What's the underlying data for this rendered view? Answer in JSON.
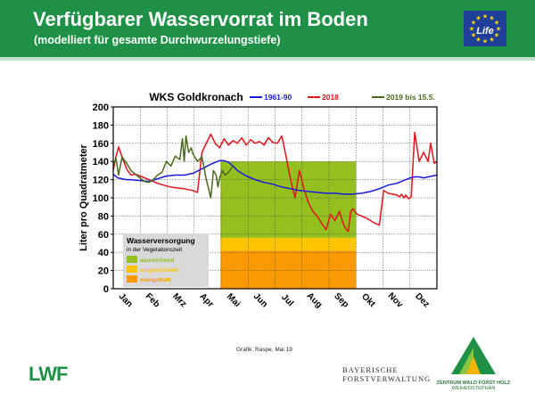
{
  "header": {
    "title": "Verfügbarer Wasservorrat im Boden",
    "subtitle": "(modelliert für gesamte Durchwurzelungstiefe)",
    "eu_logo_text": "Life"
  },
  "footer": {
    "credit": "Grafik: Raspe, Mai 19",
    "lwf_logo": "LWF",
    "bfv_line1": "BAYERISCHE",
    "bfv_line2": "FORSTVERWALTUNG",
    "zentrum_line1": "ZENTRUM WALD FORST HOLZ",
    "zentrum_line2": "WEIHENSTEPHAN"
  },
  "colors": {
    "header_green": "#1f9146",
    "series_1961_90": "#1a1adb",
    "series_2018": "#e0141c",
    "series_2019": "#4a6a1e",
    "ausreichend": "#93c01f",
    "eingeschraenkt": "#fcc500",
    "mangelhaft": "#fb9a00"
  },
  "chart_data": {
    "type": "line",
    "title": "WKS Goldkronach",
    "ylabel": "Liter pro Quadratmeter",
    "ylim": [
      0,
      200
    ],
    "yticks": [
      0,
      20,
      40,
      60,
      80,
      100,
      120,
      140,
      160,
      180,
      200
    ],
    "xlim": [
      0,
      365
    ],
    "months": [
      "Jan",
      "Feb",
      "Mrz",
      "Apr",
      "Mai",
      "Jun",
      "Jul",
      "Aug",
      "Sep",
      "Okt",
      "Nov",
      "Dez"
    ],
    "grid": true,
    "legend": "top",
    "vegetation_period": {
      "start_day": 121,
      "end_day": 274,
      "bands": [
        {
          "label": "mangelhaft",
          "from": 0,
          "to": 42
        },
        {
          "label": "eingeschränkt",
          "from": 42,
          "to": 56
        },
        {
          "label": "ausreichend",
          "from": 56,
          "to": 140
        }
      ]
    },
    "legend_box": {
      "title": "Wasserversorgung",
      "subtitle": "in der Vegetationszeit",
      "items": [
        "ausreichend",
        "eingeschränkt",
        "mangelhaft"
      ]
    },
    "series": [
      {
        "name": "1961-90",
        "x": [
          0,
          5,
          10,
          15,
          20,
          30,
          40,
          50,
          60,
          70,
          80,
          90,
          100,
          110,
          115,
          120,
          125,
          130,
          135,
          140,
          150,
          160,
          170,
          180,
          190,
          200,
          210,
          220,
          230,
          240,
          250,
          260,
          270,
          280,
          290,
          300,
          305,
          310,
          320,
          330,
          335,
          340,
          345,
          350,
          355,
          360,
          365
        ],
        "values": [
          126,
          122,
          121,
          120,
          120,
          119,
          118,
          121,
          124,
          125,
          125,
          127,
          132,
          137,
          139,
          141,
          141,
          139,
          135,
          130,
          124,
          120,
          117,
          115,
          112,
          110,
          108,
          107,
          106,
          105,
          105,
          104,
          104,
          105,
          107,
          110,
          112,
          114,
          116,
          120,
          122,
          123,
          123,
          122,
          123,
          124,
          125
        ]
      },
      {
        "name": "2018",
        "x": [
          0,
          3,
          6,
          10,
          15,
          20,
          25,
          30,
          40,
          50,
          60,
          70,
          80,
          90,
          95,
          100,
          105,
          110,
          115,
          120,
          125,
          130,
          135,
          140,
          145,
          150,
          155,
          160,
          165,
          170,
          175,
          180,
          185,
          190,
          193,
          196,
          200,
          205,
          210,
          215,
          220,
          225,
          230,
          235,
          240,
          245,
          250,
          255,
          260,
          263,
          265,
          268,
          270,
          275,
          280,
          285,
          290,
          295,
          300,
          305,
          310,
          315,
          320,
          323,
          325,
          328,
          330,
          333,
          336,
          340,
          345,
          350,
          355,
          358,
          362,
          365
        ],
        "values": [
          130,
          145,
          156,
          145,
          132,
          125,
          126,
          124,
          120,
          116,
          113,
          111,
          110,
          108,
          106,
          150,
          160,
          170,
          160,
          155,
          165,
          158,
          163,
          160,
          166,
          158,
          164,
          160,
          162,
          158,
          166,
          161,
          160,
          168,
          155,
          140,
          120,
          100,
          130,
          110,
          95,
          85,
          80,
          72,
          65,
          82,
          75,
          85,
          70,
          65,
          63,
          85,
          88,
          82,
          80,
          78,
          75,
          72,
          70,
          108,
          105,
          104,
          103,
          101,
          104,
          100,
          103,
          99,
          101,
          172,
          140,
          150,
          140,
          160,
          138,
          140
        ]
      },
      {
        "name": "2019 bis 15.5.",
        "x": [
          0,
          3,
          6,
          10,
          15,
          20,
          25,
          30,
          35,
          40,
          45,
          50,
          55,
          60,
          65,
          70,
          75,
          78,
          80,
          82,
          85,
          88,
          90,
          95,
          100,
          105,
          110,
          113,
          116,
          118,
          120,
          123,
          126,
          130,
          135
        ],
        "values": [
          135,
          144,
          125,
          145,
          138,
          130,
          126,
          122,
          118,
          117,
          120,
          125,
          128,
          140,
          135,
          146,
          142,
          165,
          140,
          168,
          150,
          155,
          148,
          140,
          145,
          120,
          100,
          130,
          125,
          112,
          122,
          130,
          125,
          128,
          135
        ]
      }
    ]
  }
}
